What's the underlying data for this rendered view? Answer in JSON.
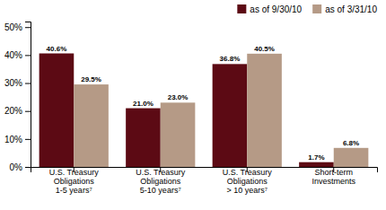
{
  "chart_data": {
    "type": "bar",
    "categories": [
      "U.S. Treasury\nObligations\n1-5 years⁷",
      "U.S. Treasury\nObligations\n5-10 years⁷",
      "U.S. Treasury\nObligations\n> 10 years⁷",
      "Short-term\nInvestments"
    ],
    "series": [
      {
        "name": "as of 9/30/10",
        "color": "#5C0A14",
        "values": [
          40.6,
          21.0,
          36.8,
          1.7
        ],
        "value_labels": [
          "40.6%",
          "21.0%",
          "36.8%",
          "1.7%"
        ]
      },
      {
        "name": "as of 3/31/10",
        "color": "#B59A86",
        "values": [
          29.5,
          23.0,
          40.5,
          6.8
        ],
        "value_labels": [
          "29.5%",
          "23.0%",
          "40.5%",
          "6.8%"
        ]
      }
    ],
    "ylim": [
      0,
      52
    ],
    "yticks": [
      {
        "value": 0,
        "label": "0%"
      },
      {
        "value": 10,
        "label": "10%"
      },
      {
        "value": 20,
        "label": "20%"
      },
      {
        "value": 30,
        "label": "30%"
      },
      {
        "value": 40,
        "label": "40%"
      },
      {
        "value": 50,
        "label": "50%"
      }
    ],
    "data_labels": true,
    "legend": "upper right",
    "grid": false
  }
}
